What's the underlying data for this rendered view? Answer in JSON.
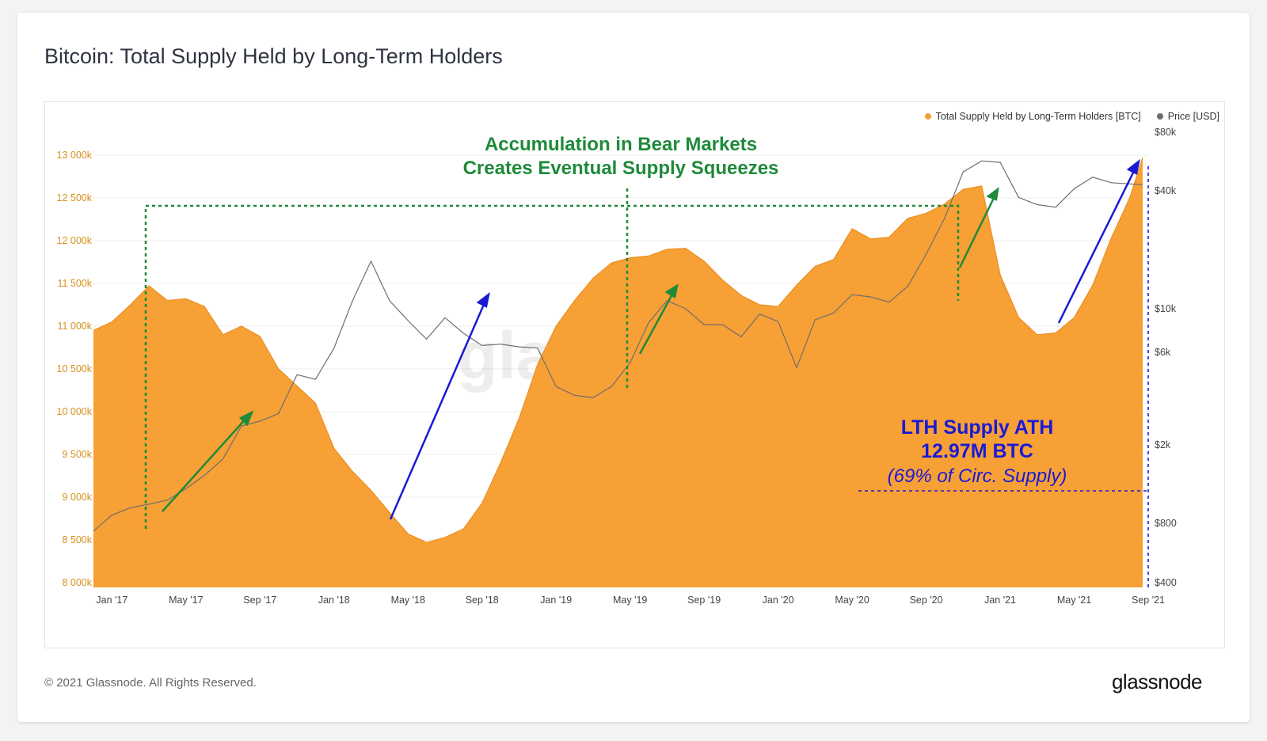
{
  "title": "Bitcoin: Total Supply Held by Long-Term Holders",
  "footer": "© 2021 Glassnode. All Rights Reserved.",
  "brand": "glassnode",
  "watermark": "glassnode",
  "colors": {
    "supply": "#f7a035",
    "price": "#6e6e6e",
    "green_annotation": "#1e8a3a",
    "blue_annotation": "#1a1ad6",
    "axis_left": "#d9901e"
  },
  "legend": [
    {
      "label": "Total Supply Held by Long-Term Holders [BTC]",
      "color": "#f7a035"
    },
    {
      "label": "Price [USD]",
      "color": "#6e6e6e"
    }
  ],
  "annotations": {
    "green_line1": "Accumulation in Bear Markets",
    "green_line2": "Creates Eventual Supply Squeezes",
    "ath_line1": "LTH Supply ATH",
    "ath_line2": "12.97M BTC",
    "ath_line3": "(69% of Circ. Supply)"
  },
  "chart_data": {
    "type": "area",
    "x_ticks": [
      "Jan '17",
      "May '17",
      "Sep '17",
      "Jan '18",
      "May '18",
      "Sep '18",
      "Jan '19",
      "May '19",
      "Sep '19",
      "Jan '20",
      "May '20",
      "Sep '20",
      "Jan '21",
      "May '21",
      "Sep '21"
    ],
    "y_left_ticks": [
      "8 000k",
      "8 500k",
      "9 000k",
      "9 500k",
      "10 000k",
      "10 500k",
      "11 000k",
      "11 500k",
      "12 000k",
      "12 500k",
      "13 000k"
    ],
    "y_left_range": [
      8000,
      13000
    ],
    "y_right_ticks": [
      "$400",
      "$800",
      "$2k",
      "$6k",
      "$10k",
      "$40k",
      "$80k"
    ],
    "y_right_values": [
      400,
      800,
      2000,
      6000,
      10000,
      40000,
      80000
    ],
    "y_right_scale": "log",
    "x_range_months": [
      -1,
      56
    ],
    "series": [
      {
        "name": "Total Supply Held by Long-Term Holders [BTC]",
        "axis": "left",
        "unit": "k BTC",
        "points": [
          [
            -1,
            10950
          ],
          [
            0,
            11050
          ],
          [
            1,
            11250
          ],
          [
            2,
            11470
          ],
          [
            3,
            11300
          ],
          [
            4,
            11320
          ],
          [
            5,
            11230
          ],
          [
            6,
            10900
          ],
          [
            7,
            11000
          ],
          [
            8,
            10880
          ],
          [
            9,
            10500
          ],
          [
            10,
            10300
          ],
          [
            11,
            10100
          ],
          [
            12,
            9570
          ],
          [
            13,
            9300
          ],
          [
            14,
            9080
          ],
          [
            15,
            8820
          ],
          [
            16,
            8570
          ],
          [
            17,
            8470
          ],
          [
            18,
            8530
          ],
          [
            19,
            8630
          ],
          [
            20,
            8930
          ],
          [
            21,
            9400
          ],
          [
            22,
            9920
          ],
          [
            23,
            10550
          ],
          [
            24,
            11000
          ],
          [
            25,
            11300
          ],
          [
            26,
            11560
          ],
          [
            27,
            11740
          ],
          [
            28,
            11800
          ],
          [
            29,
            11820
          ],
          [
            30,
            11900
          ],
          [
            31,
            11910
          ],
          [
            32,
            11760
          ],
          [
            33,
            11540
          ],
          [
            34,
            11360
          ],
          [
            35,
            11250
          ],
          [
            36,
            11230
          ],
          [
            37,
            11480
          ],
          [
            38,
            11700
          ],
          [
            39,
            11780
          ],
          [
            40,
            12140
          ],
          [
            41,
            12020
          ],
          [
            42,
            12040
          ],
          [
            43,
            12260
          ],
          [
            44,
            12320
          ],
          [
            45,
            12430
          ],
          [
            46,
            12600
          ],
          [
            47,
            12640
          ],
          [
            48,
            11600
          ],
          [
            49,
            11100
          ],
          [
            50,
            10900
          ],
          [
            51,
            10920
          ],
          [
            52,
            11100
          ],
          [
            53,
            11480
          ],
          [
            54,
            12030
          ],
          [
            55,
            12500
          ],
          [
            55.7,
            12970
          ]
        ]
      },
      {
        "name": "Price [USD]",
        "axis": "right",
        "unit": "USD",
        "points": [
          [
            -1,
            730
          ],
          [
            0,
            880
          ],
          [
            1,
            960
          ],
          [
            2,
            1000
          ],
          [
            3,
            1050
          ],
          [
            4,
            1200
          ],
          [
            5,
            1400
          ],
          [
            6,
            1700
          ],
          [
            7,
            2500
          ],
          [
            8,
            2650
          ],
          [
            9,
            2900
          ],
          [
            10,
            4600
          ],
          [
            11,
            4350
          ],
          [
            12,
            6300
          ],
          [
            13,
            11000
          ],
          [
            14,
            17500
          ],
          [
            15,
            11000
          ],
          [
            16,
            8700
          ],
          [
            17,
            7000
          ],
          [
            18,
            9000
          ],
          [
            19,
            7500
          ],
          [
            20,
            6500
          ],
          [
            21,
            6600
          ],
          [
            22,
            6400
          ],
          [
            23,
            6300
          ],
          [
            24,
            4000
          ],
          [
            25,
            3600
          ],
          [
            26,
            3500
          ],
          [
            27,
            4000
          ],
          [
            28,
            5300
          ],
          [
            29,
            8500
          ],
          [
            30,
            11000
          ],
          [
            31,
            10000
          ],
          [
            32,
            8300
          ],
          [
            33,
            8300
          ],
          [
            34,
            7200
          ],
          [
            35,
            9400
          ],
          [
            36,
            8600
          ],
          [
            37,
            5000
          ],
          [
            38,
            8800
          ],
          [
            39,
            9500
          ],
          [
            40,
            11800
          ],
          [
            41,
            11500
          ],
          [
            42,
            10800
          ],
          [
            43,
            13000
          ],
          [
            44,
            19000
          ],
          [
            45,
            29000
          ],
          [
            46,
            50000
          ],
          [
            47,
            57000
          ],
          [
            48,
            56000
          ],
          [
            49,
            37000
          ],
          [
            50,
            34000
          ],
          [
            51,
            33000
          ],
          [
            52,
            41000
          ],
          [
            53,
            47000
          ],
          [
            54,
            44000
          ],
          [
            55.7,
            43000
          ]
        ]
      }
    ]
  }
}
